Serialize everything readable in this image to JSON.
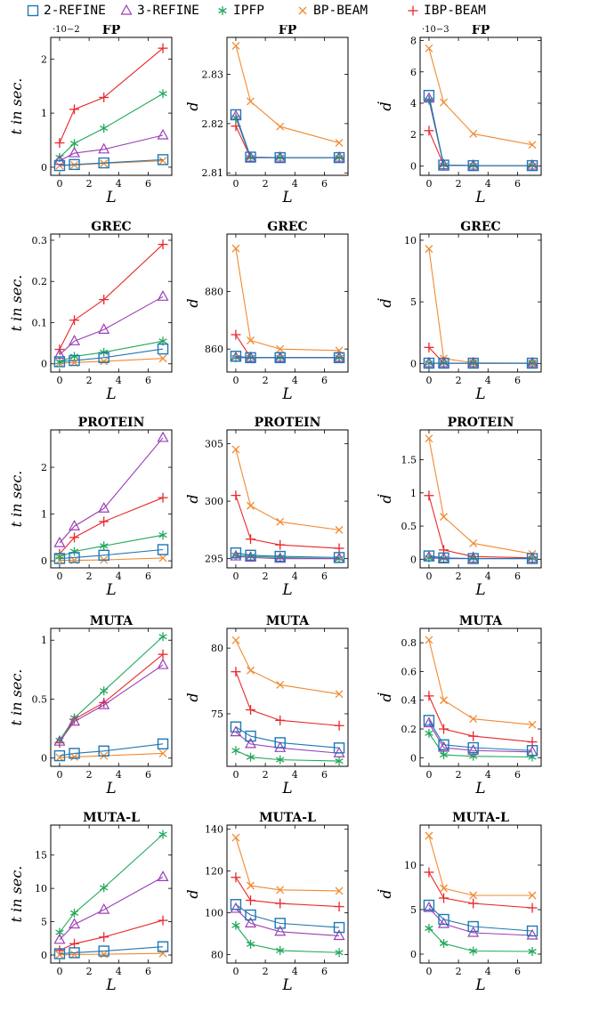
{
  "legend": [
    {
      "name": "2-REFINE",
      "color": "#1f77b4",
      "marker": "square"
    },
    {
      "name": "3-REFINE",
      "color": "#9b3fb5",
      "marker": "triangle"
    },
    {
      "name": "IPFP",
      "color": "#22a85a",
      "marker": "star"
    },
    {
      "name": "BP-BEAM",
      "color": "#f28a30",
      "marker": "cross"
    },
    {
      "name": "IBP-BEAM",
      "color": "#e8282b",
      "marker": "plus"
    }
  ],
  "chart_data": [
    {
      "type": "line",
      "title": "FP",
      "xlabel": "L",
      "ylabel": "t in sec.",
      "multiplier": "·10−2",
      "x": [
        0,
        1,
        3,
        7
      ],
      "xticks": [
        0,
        2,
        4,
        6
      ],
      "ylim": [
        -0.15,
        2.4
      ],
      "yticks": [
        0,
        1,
        2
      ],
      "series": [
        {
          "name": "2-REFINE",
          "values": [
            0.03,
            0.05,
            0.08,
            0.14
          ]
        },
        {
          "name": "3-REFINE",
          "values": [
            0.12,
            0.26,
            0.33,
            0.59
          ]
        },
        {
          "name": "IPFP",
          "values": [
            0.18,
            0.44,
            0.72,
            1.36
          ]
        },
        {
          "name": "BP-BEAM",
          "values": [
            0.03,
            0.04,
            0.07,
            0.12
          ]
        },
        {
          "name": "IBP-BEAM",
          "values": [
            0.45,
            1.07,
            1.29,
            2.2
          ]
        }
      ]
    },
    {
      "type": "line",
      "title": "FP",
      "xlabel": "L",
      "ylabel": "d",
      "x": [
        0,
        1,
        3,
        7
      ],
      "xticks": [
        0,
        2,
        4,
        6
      ],
      "ylim": [
        2.8095,
        2.8375
      ],
      "yticks": [
        2.81,
        2.82,
        2.83
      ],
      "yticklabels": [
        "2.81",
        "2.82",
        "2.83"
      ],
      "series": [
        {
          "name": "2-REFINE",
          "values": [
            2.8218,
            2.8132,
            2.8131,
            2.8131
          ]
        },
        {
          "name": "3-REFINE",
          "values": [
            2.8215,
            2.8131,
            2.8131,
            2.8131
          ]
        },
        {
          "name": "IPFP",
          "values": [
            2.8212,
            2.8131,
            2.8131,
            2.8131
          ]
        },
        {
          "name": "BP-BEAM",
          "values": [
            2.8358,
            2.8245,
            2.8194,
            2.8161
          ]
        },
        {
          "name": "IBP-BEAM",
          "values": [
            2.8195,
            2.8131,
            2.8131,
            2.8131
          ]
        }
      ]
    },
    {
      "type": "line",
      "title": "FP",
      "xlabel": "L",
      "ylabel": "ḋ",
      "multiplier": "·10−3",
      "x": [
        0,
        1,
        3,
        7
      ],
      "xticks": [
        0,
        2,
        4,
        6
      ],
      "ylim": [
        -0.6,
        8.2
      ],
      "yticks": [
        0,
        2,
        4,
        6,
        8
      ],
      "series": [
        {
          "name": "2-REFINE",
          "values": [
            4.5,
            0.05,
            0.02,
            0.02
          ]
        },
        {
          "name": "3-REFINE",
          "values": [
            4.3,
            0.05,
            0.02,
            0.02
          ]
        },
        {
          "name": "IPFP",
          "values": [
            4.2,
            0.05,
            0.02,
            0.02
          ]
        },
        {
          "name": "BP-BEAM",
          "values": [
            7.5,
            4.05,
            2.05,
            1.35
          ]
        },
        {
          "name": "IBP-BEAM",
          "values": [
            2.25,
            0.05,
            0.02,
            0.02
          ]
        }
      ]
    },
    {
      "type": "line",
      "title": "GREC",
      "xlabel": "L",
      "ylabel": "t in sec.",
      "x": [
        0,
        1,
        3,
        7
      ],
      "xticks": [
        0,
        2,
        4,
        6
      ],
      "ylim": [
        -0.02,
        0.315
      ],
      "yticks": [
        0,
        0.1,
        0.2,
        0.3
      ],
      "yticklabels": [
        "0",
        "0.1",
        "0.2",
        "0.3"
      ],
      "series": [
        {
          "name": "2-REFINE",
          "values": [
            0.005,
            0.008,
            0.015,
            0.036
          ]
        },
        {
          "name": "3-REFINE",
          "values": [
            0.022,
            0.055,
            0.083,
            0.163
          ]
        },
        {
          "name": "IPFP",
          "values": [
            0.005,
            0.018,
            0.028,
            0.055
          ]
        },
        {
          "name": "BP-BEAM",
          "values": [
            0.002,
            0.003,
            0.006,
            0.013
          ]
        },
        {
          "name": "IBP-BEAM",
          "values": [
            0.035,
            0.106,
            0.156,
            0.29
          ]
        }
      ]
    },
    {
      "type": "line",
      "title": "GREC",
      "xlabel": "L",
      "ylabel": "d",
      "x": [
        0,
        1,
        3,
        7
      ],
      "xticks": [
        0,
        2,
        4,
        6
      ],
      "ylim": [
        852,
        900
      ],
      "yticks": [
        860,
        880
      ],
      "series": [
        {
          "name": "2-REFINE",
          "values": [
            857.5,
            857,
            857,
            857
          ]
        },
        {
          "name": "3-REFINE",
          "values": [
            857,
            857,
            857,
            857
          ]
        },
        {
          "name": "IPFP",
          "values": [
            857,
            857,
            857,
            857
          ]
        },
        {
          "name": "BP-BEAM",
          "values": [
            895,
            863,
            860,
            859.5
          ]
        },
        {
          "name": "IBP-BEAM",
          "values": [
            865,
            857,
            857,
            857
          ]
        }
      ]
    },
    {
      "type": "line",
      "title": "GREC",
      "xlabel": "L",
      "ylabel": "ḋ",
      "x": [
        0,
        1,
        3,
        7
      ],
      "xticks": [
        0,
        2,
        4,
        6
      ],
      "ylim": [
        -0.7,
        10.5
      ],
      "yticks": [
        0,
        5,
        10
      ],
      "series": [
        {
          "name": "2-REFINE",
          "values": [
            0.02,
            0.02,
            0.02,
            0.02
          ]
        },
        {
          "name": "3-REFINE",
          "values": [
            0.02,
            0.02,
            0.02,
            0.02
          ]
        },
        {
          "name": "IPFP",
          "values": [
            0.02,
            0.02,
            0.02,
            0.02
          ]
        },
        {
          "name": "BP-BEAM",
          "values": [
            9.3,
            0.4,
            0.05,
            0.02
          ]
        },
        {
          "name": "IBP-BEAM",
          "values": [
            1.3,
            0.02,
            0.02,
            0.02
          ]
        }
      ]
    },
    {
      "type": "line",
      "title": "PROTEIN",
      "xlabel": "L",
      "ylabel": "t in sec.",
      "x": [
        0,
        1,
        3,
        7
      ],
      "xticks": [
        0,
        2,
        4,
        6
      ],
      "ylim": [
        -0.15,
        2.8
      ],
      "yticks": [
        0,
        1,
        2
      ],
      "series": [
        {
          "name": "2-REFINE",
          "values": [
            0.05,
            0.07,
            0.12,
            0.24
          ]
        },
        {
          "name": "3-REFINE",
          "values": [
            0.38,
            0.74,
            1.12,
            2.63
          ]
        },
        {
          "name": "IPFP",
          "values": [
            0.09,
            0.2,
            0.32,
            0.55
          ]
        },
        {
          "name": "BP-BEAM",
          "values": [
            0.01,
            0.01,
            0.02,
            0.06
          ]
        },
        {
          "name": "IBP-BEAM",
          "values": [
            0.15,
            0.5,
            0.84,
            1.35
          ]
        }
      ]
    },
    {
      "type": "line",
      "title": "PROTEIN",
      "xlabel": "L",
      "ylabel": "d",
      "x": [
        0,
        1,
        3,
        7
      ],
      "xticks": [
        0,
        2,
        4,
        6
      ],
      "ylim": [
        294.2,
        306.2
      ],
      "yticks": [
        295,
        300,
        305
      ],
      "series": [
        {
          "name": "2-REFINE",
          "values": [
            295.5,
            295.3,
            295.2,
            295.1
          ]
        },
        {
          "name": "3-REFINE",
          "values": [
            295.2,
            295.1,
            295,
            295
          ]
        },
        {
          "name": "IPFP",
          "values": [
            295.3,
            295.2,
            295.1,
            295
          ]
        },
        {
          "name": "BP-BEAM",
          "values": [
            304.5,
            299.6,
            298.2,
            297.5
          ]
        },
        {
          "name": "IBP-BEAM",
          "values": [
            300.5,
            296.7,
            296.2,
            295.9
          ]
        }
      ]
    },
    {
      "type": "line",
      "title": "PROTEIN",
      "xlabel": "L",
      "ylabel": "ḋ",
      "x": [
        0,
        1,
        3,
        7
      ],
      "xticks": [
        0,
        2,
        4,
        6
      ],
      "ylim": [
        -0.13,
        1.95
      ],
      "yticks": [
        0,
        0.5,
        1,
        1.5
      ],
      "yticklabels": [
        "0",
        "0.5",
        "1",
        "1.5"
      ],
      "series": [
        {
          "name": "2-REFINE",
          "values": [
            0.05,
            0.02,
            0.01,
            0.01
          ]
        },
        {
          "name": "3-REFINE",
          "values": [
            0.03,
            0.01,
            0.01,
            0.01
          ]
        },
        {
          "name": "IPFP",
          "values": [
            0.02,
            0.01,
            0.01,
            0.01
          ]
        },
        {
          "name": "BP-BEAM",
          "values": [
            1.82,
            0.64,
            0.24,
            0.08
          ]
        },
        {
          "name": "IBP-BEAM",
          "values": [
            0.96,
            0.14,
            0.04,
            0.02
          ]
        }
      ]
    },
    {
      "type": "line",
      "title": "MUTA",
      "xlabel": "L",
      "ylabel": "t in sec.",
      "x": [
        0,
        1,
        3,
        7
      ],
      "xticks": [
        0,
        2,
        4,
        6
      ],
      "ylim": [
        -0.07,
        1.1
      ],
      "yticks": [
        0,
        0.5,
        1
      ],
      "yticklabels": [
        "0",
        "0.5",
        "1"
      ],
      "series": [
        {
          "name": "2-REFINE",
          "values": [
            0.02,
            0.04,
            0.06,
            0.12
          ]
        },
        {
          "name": "3-REFINE",
          "values": [
            0.14,
            0.31,
            0.45,
            0.79
          ]
        },
        {
          "name": "IPFP",
          "values": [
            0.15,
            0.34,
            0.57,
            1.03
          ]
        },
        {
          "name": "BP-BEAM",
          "values": [
            0.005,
            0.01,
            0.02,
            0.04
          ]
        },
        {
          "name": "IBP-BEAM",
          "values": [
            0.13,
            0.33,
            0.47,
            0.88
          ]
        }
      ]
    },
    {
      "type": "line",
      "title": "MUTA",
      "xlabel": "L",
      "ylabel": "d",
      "x": [
        0,
        1,
        3,
        7
      ],
      "xticks": [
        0,
        2,
        4,
        6
      ],
      "ylim": [
        71,
        81.5
      ],
      "yticks": [
        75,
        80
      ],
      "series": [
        {
          "name": "2-REFINE",
          "values": [
            74,
            73.3,
            72.8,
            72.4
          ]
        },
        {
          "name": "3-REFINE",
          "values": [
            73.6,
            72.7,
            72.4,
            72
          ]
        },
        {
          "name": "IPFP",
          "values": [
            72.2,
            71.7,
            71.5,
            71.4
          ]
        },
        {
          "name": "BP-BEAM",
          "values": [
            80.6,
            78.3,
            77.2,
            76.5
          ]
        },
        {
          "name": "IBP-BEAM",
          "values": [
            78.2,
            75.3,
            74.5,
            74.1
          ]
        }
      ]
    },
    {
      "type": "line",
      "title": "MUTA",
      "xlabel": "L",
      "ylabel": "ḋ",
      "x": [
        0,
        1,
        3,
        7
      ],
      "xticks": [
        0,
        2,
        4,
        6
      ],
      "ylim": [
        -0.06,
        0.9
      ],
      "yticks": [
        0,
        0.2,
        0.4,
        0.6,
        0.8
      ],
      "yticklabels": [
        "0",
        "0.2",
        "0.4",
        "0.6",
        "0.8"
      ],
      "series": [
        {
          "name": "2-REFINE",
          "values": [
            0.26,
            0.09,
            0.07,
            0.05
          ]
        },
        {
          "name": "3-REFINE",
          "values": [
            0.24,
            0.07,
            0.05,
            0.04
          ]
        },
        {
          "name": "IPFP",
          "values": [
            0.17,
            0.02,
            0.01,
            0.005
          ]
        },
        {
          "name": "BP-BEAM",
          "values": [
            0.82,
            0.4,
            0.27,
            0.23
          ]
        },
        {
          "name": "IBP-BEAM",
          "values": [
            0.43,
            0.2,
            0.15,
            0.11
          ]
        }
      ]
    },
    {
      "type": "line",
      "title": "MUTA-L",
      "xlabel": "L",
      "ylabel": "t in sec.",
      "x": [
        0,
        1,
        3,
        7
      ],
      "xticks": [
        0,
        2,
        4,
        6
      ],
      "ylim": [
        -1.2,
        19.5
      ],
      "yticks": [
        0,
        5,
        10,
        15
      ],
      "series": [
        {
          "name": "2-REFINE",
          "values": [
            0.2,
            0.35,
            0.6,
            1.25
          ]
        },
        {
          "name": "3-REFINE",
          "values": [
            2.3,
            4.6,
            6.8,
            11.7
          ]
        },
        {
          "name": "IPFP",
          "values": [
            3.4,
            6.3,
            10.1,
            18.1
          ]
        },
        {
          "name": "BP-BEAM",
          "values": [
            0.05,
            0.08,
            0.12,
            0.25
          ]
        },
        {
          "name": "IBP-BEAM",
          "values": [
            0.7,
            1.7,
            2.7,
            5.2
          ]
        }
      ]
    },
    {
      "type": "line",
      "title": "MUTA-L",
      "xlabel": "L",
      "ylabel": "d",
      "x": [
        0,
        1,
        3,
        7
      ],
      "xticks": [
        0,
        2,
        4,
        6
      ],
      "ylim": [
        76,
        142
      ],
      "yticks": [
        80,
        100,
        120,
        140
      ],
      "series": [
        {
          "name": "2-REFINE",
          "values": [
            104,
            99,
            95,
            93
          ]
        },
        {
          "name": "3-REFINE",
          "values": [
            102,
            95,
            91,
            89
          ]
        },
        {
          "name": "IPFP",
          "values": [
            94,
            85,
            82,
            81
          ]
        },
        {
          "name": "BP-BEAM",
          "values": [
            136,
            113,
            111,
            110.5
          ]
        },
        {
          "name": "IBP-BEAM",
          "values": [
            117,
            106,
            104.5,
            103
          ]
        }
      ]
    },
    {
      "type": "line",
      "title": "MUTA-L",
      "xlabel": "L",
      "ylabel": "ḋ",
      "x": [
        0,
        1,
        3,
        7
      ],
      "xticks": [
        0,
        2,
        4,
        6
      ],
      "ylim": [
        -1,
        14.5
      ],
      "yticks": [
        0,
        5,
        10
      ],
      "series": [
        {
          "name": "2-REFINE",
          "values": [
            5.5,
            3.9,
            3.1,
            2.6
          ]
        },
        {
          "name": "3-REFINE",
          "values": [
            5.2,
            3.4,
            2.4,
            2.1
          ]
        },
        {
          "name": "IPFP",
          "values": [
            2.9,
            1.2,
            0.35,
            0.3
          ]
        },
        {
          "name": "BP-BEAM",
          "values": [
            13.3,
            7.4,
            6.6,
            6.6
          ]
        },
        {
          "name": "IBP-BEAM",
          "values": [
            9.2,
            6.3,
            5.7,
            5.2
          ]
        }
      ]
    }
  ]
}
